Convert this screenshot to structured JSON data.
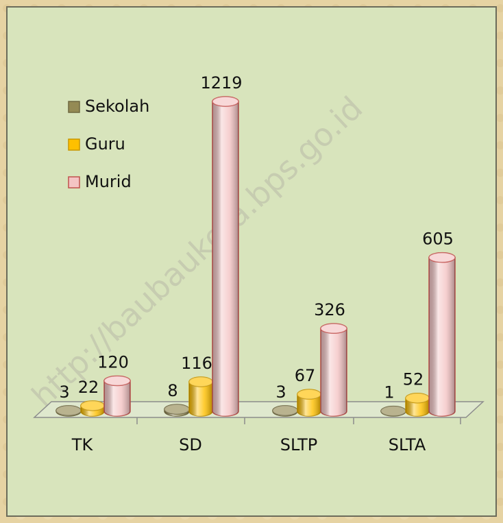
{
  "chart_data": {
    "type": "cylinder",
    "categories": [
      "TK",
      "SD",
      "SLTP",
      "SLTA"
    ],
    "series": [
      {
        "name": "Sekolah",
        "color": "#948a54",
        "values": [
          3,
          8,
          3,
          1
        ]
      },
      {
        "name": "Guru",
        "color": "#ffc000",
        "values": [
          22,
          116,
          67,
          52
        ]
      },
      {
        "name": "Murid",
        "color": "#f4c4c4",
        "values": [
          120,
          1219,
          326,
          605
        ]
      }
    ],
    "legend": "upper left",
    "watermark": "http://baubaukota.bps.go.id"
  }
}
